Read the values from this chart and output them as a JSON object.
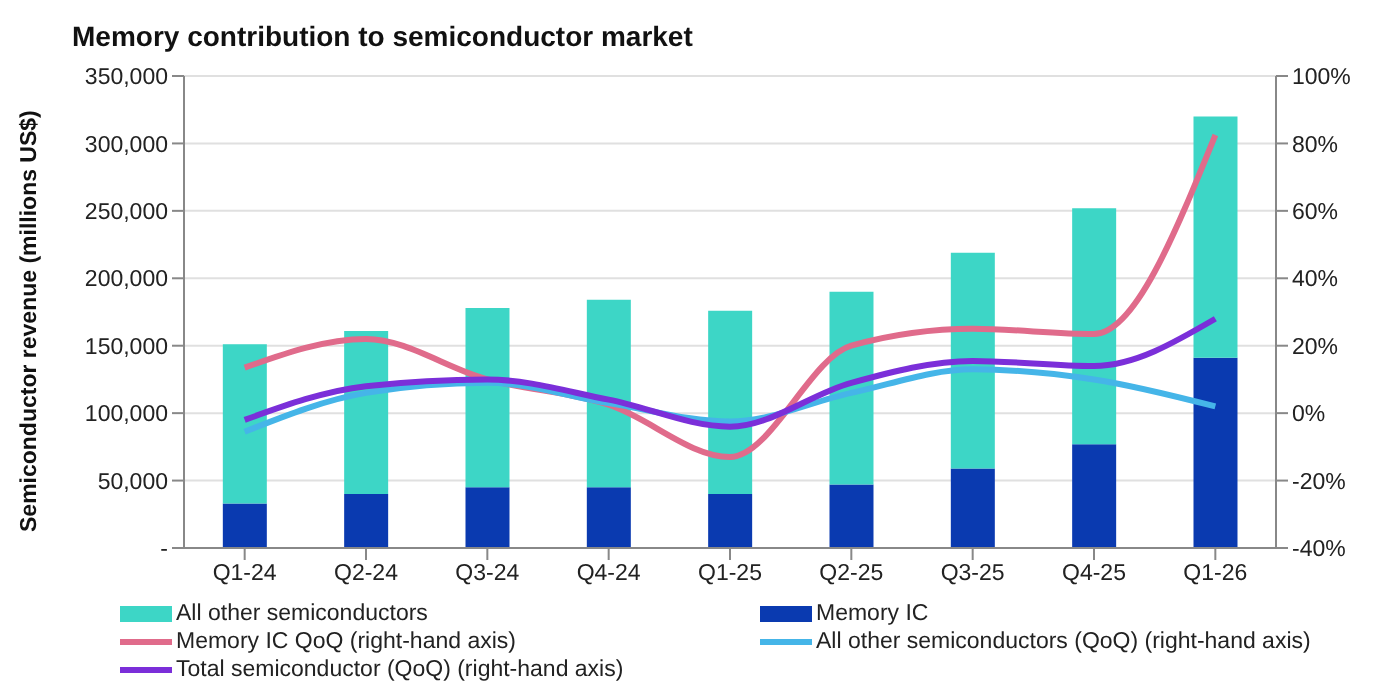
{
  "chart_data": {
    "type": "bar",
    "title": "Memory contribution to semiconductor market",
    "ylabel": "Semiconductor revenue (millions US$)",
    "categories": [
      "Q1-24",
      "Q2-24",
      "Q3-24",
      "Q4-24",
      "Q1-25",
      "Q2-25",
      "Q3-25",
      "Q4-25",
      "Q1-26"
    ],
    "stacked": true,
    "series": [
      {
        "name": "Memory IC",
        "color": "#0a3ab0",
        "values": [
          33000,
          40000,
          45000,
          45000,
          40000,
          47000,
          59000,
          77000,
          141000
        ]
      },
      {
        "name": "All other semiconductors",
        "color": "#3dd6c6",
        "values": [
          118000,
          121000,
          133000,
          139000,
          136000,
          143000,
          160000,
          175000,
          179000
        ]
      },
      {
        "name": "Memory IC QoQ (right-hand axis)",
        "type": "line",
        "axis": "y2",
        "color": "#e06b8b",
        "values": [
          13.5,
          22,
          10,
          2.5,
          -13,
          20,
          25,
          23.5,
          82.5
        ]
      },
      {
        "name": "All other semiconductors (QoQ) (right-hand axis)",
        "type": "line",
        "axis": "y2",
        "color": "#45b5e8",
        "values": [
          -5.5,
          6,
          9,
          3,
          -2.5,
          6,
          13,
          10,
          2
        ]
      },
      {
        "name": "Total semiconductor (QoQ) (right-hand axis)",
        "type": "line",
        "axis": "y2",
        "color": "#7b2fd9",
        "values": [
          -2,
          8,
          10,
          4,
          -4,
          9,
          15.5,
          14,
          28
        ]
      }
    ],
    "ylim": [
      0,
      350000
    ],
    "yticks": [
      {
        "value": 0,
        "label": "-"
      },
      {
        "value": 50000,
        "label": "50,000"
      },
      {
        "value": 100000,
        "label": "100,000"
      },
      {
        "value": 150000,
        "label": "150,000"
      },
      {
        "value": 200000,
        "label": "200,000"
      },
      {
        "value": 250000,
        "label": "250,000"
      },
      {
        "value": 300000,
        "label": "300,000"
      },
      {
        "value": 350000,
        "label": "350,000"
      }
    ],
    "y2lim": [
      -40,
      100
    ],
    "y2ticks": [
      {
        "value": -40,
        "label": "-40%"
      },
      {
        "value": -20,
        "label": "-20%"
      },
      {
        "value": 0,
        "label": "0%"
      },
      {
        "value": 20,
        "label": "20%"
      },
      {
        "value": 40,
        "label": "40%"
      },
      {
        "value": 60,
        "label": "60%"
      },
      {
        "value": 80,
        "label": "80%"
      },
      {
        "value": 100,
        "label": "100%"
      }
    ],
    "grid": "y",
    "legend": "bottom",
    "marker": "none"
  }
}
